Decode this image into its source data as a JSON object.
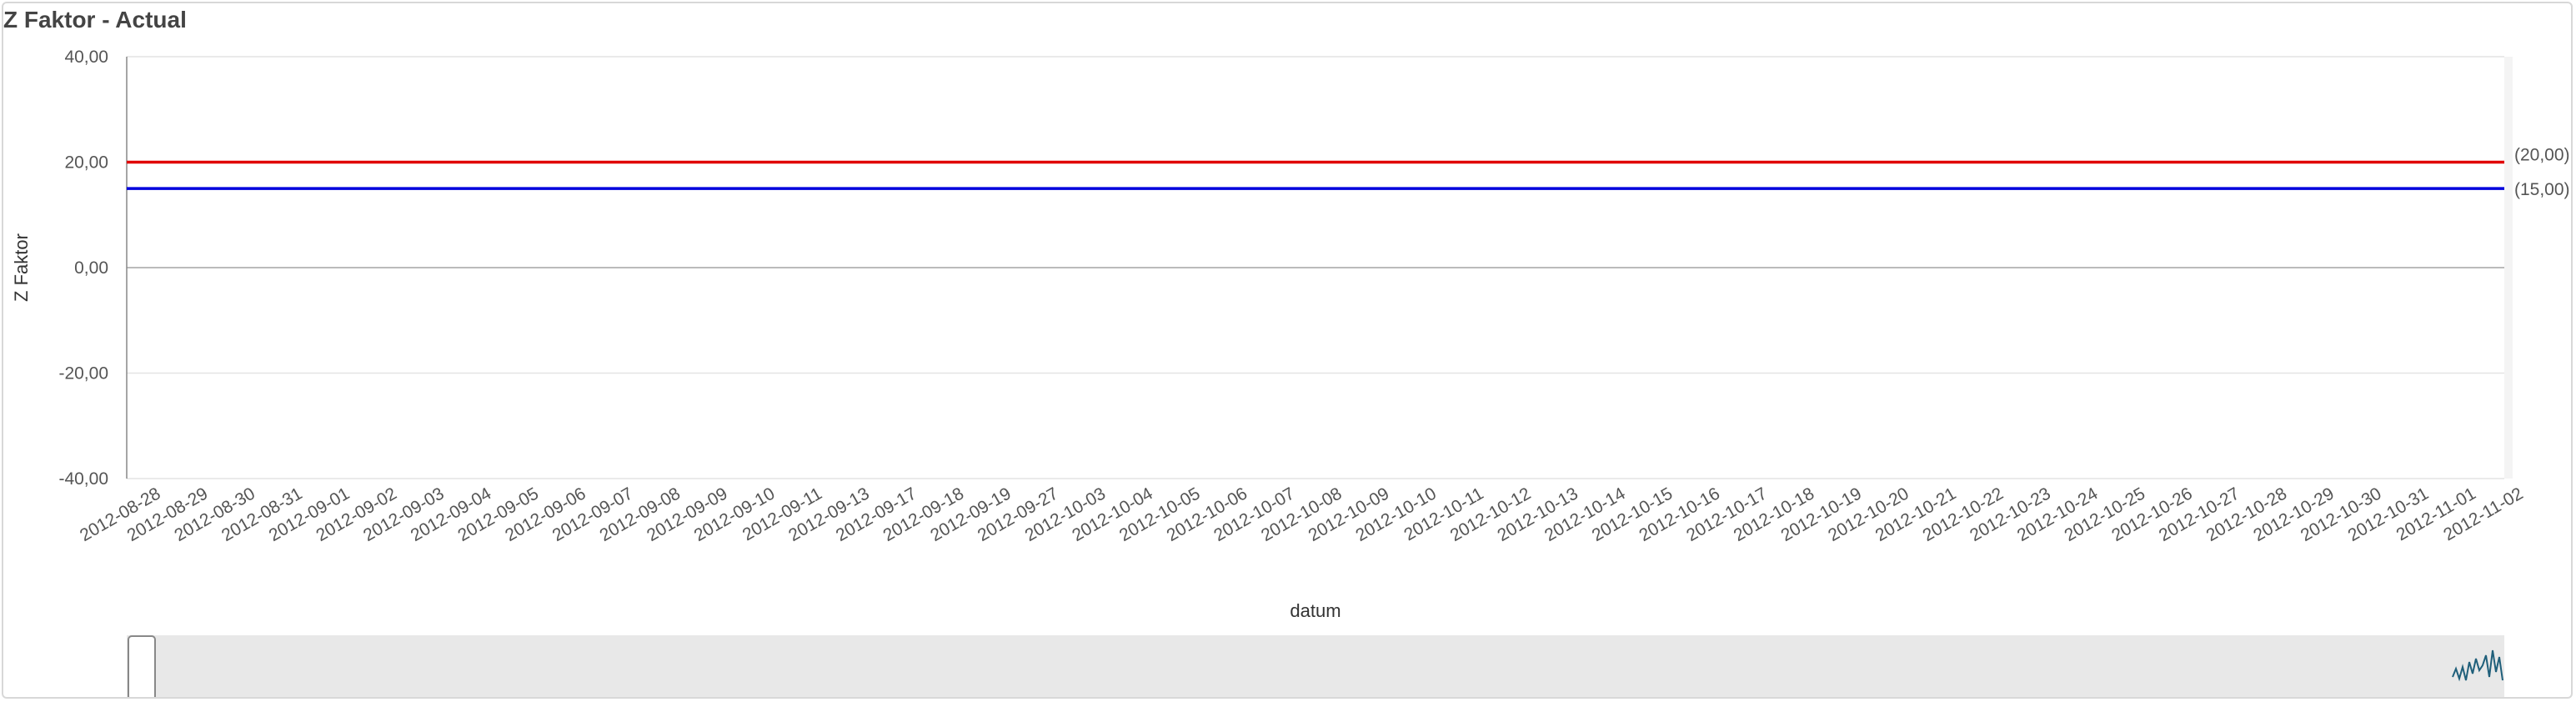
{
  "panel": {
    "title": "Z Faktor - Actual"
  },
  "chart_data": {
    "type": "line",
    "title": "Z Faktor - Actual",
    "xlabel": "datum",
    "ylabel": "Z Faktor",
    "ylim": [
      -40,
      40
    ],
    "y_ticks": [
      {
        "value": 40,
        "label": "40,00"
      },
      {
        "value": 20,
        "label": "20,00"
      },
      {
        "value": 0,
        "label": "0,00"
      },
      {
        "value": -20,
        "label": "-20,00"
      },
      {
        "value": -40,
        "label": "-40,00"
      }
    ],
    "grid": true,
    "x": [
      "2012-08-28",
      "2012-08-29",
      "2012-08-30",
      "2012-08-31",
      "2012-09-01",
      "2012-09-02",
      "2012-09-03",
      "2012-09-04",
      "2012-09-05",
      "2012-09-06",
      "2012-09-07",
      "2012-09-08",
      "2012-09-09",
      "2012-09-10",
      "2012-09-11",
      "2012-09-13",
      "2012-09-17",
      "2012-09-18",
      "2012-09-19",
      "2012-09-27",
      "2012-10-03",
      "2012-10-04",
      "2012-10-05",
      "2012-10-06",
      "2012-10-07",
      "2012-10-08",
      "2012-10-09",
      "2012-10-10",
      "2012-10-11",
      "2012-10-12",
      "2012-10-13",
      "2012-10-14",
      "2012-10-15",
      "2012-10-16",
      "2012-10-17",
      "2012-10-18",
      "2012-10-19",
      "2012-10-20",
      "2012-10-21",
      "2012-10-22",
      "2012-10-23",
      "2012-10-24",
      "2012-10-25",
      "2012-10-26",
      "2012-10-27",
      "2012-10-28",
      "2012-10-29",
      "2012-10-30",
      "2012-10-31",
      "2012-11-01",
      "2012-11-02"
    ],
    "reference_lines": [
      {
        "value": 20,
        "label": "(20,00)",
        "color": "#e00000"
      },
      {
        "value": 15,
        "label": "(15,00)",
        "color": "#0000dd"
      }
    ],
    "navigator_color": "#1f5f7a"
  }
}
